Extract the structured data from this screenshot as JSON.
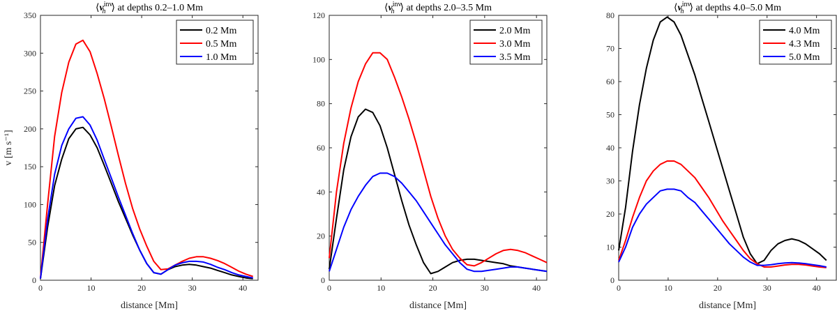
{
  "chart_data": [
    {
      "type": "line",
      "title_prefix": "⟨",
      "title_var": "v",
      "title_sub": "h",
      "title_sup": "inv",
      "title_suffix": "⟩ at depths 0.2–1.0 Mm",
      "xlabel": "distance [Mm]",
      "ylabel": "v [m s⁻¹]",
      "xlim": [
        0,
        43
      ],
      "ylim": [
        0,
        350
      ],
      "xticks": [
        0,
        10,
        20,
        30,
        40
      ],
      "yticks": [
        0,
        50,
        100,
        150,
        200,
        250,
        300,
        350
      ],
      "legend_position": "top-right",
      "x": [
        0,
        1.4,
        2.8,
        4.2,
        5.6,
        7,
        8.4,
        9.8,
        11.2,
        12.6,
        14,
        15.4,
        16.8,
        18.2,
        19.6,
        21,
        22.4,
        23.8,
        25.2,
        26.6,
        28,
        29.4,
        30.8,
        32.2,
        33.6,
        35,
        36.4,
        37.8,
        39.2,
        40.6,
        42
      ],
      "series": [
        {
          "name": "0.2 Mm",
          "color": "#000000",
          "values": [
            2,
            70,
            125,
            160,
            187,
            200,
            202,
            192,
            175,
            152,
            128,
            104,
            82,
            60,
            40,
            22,
            10,
            8,
            14,
            18,
            20,
            21,
            20,
            18,
            16,
            13,
            10,
            7,
            5,
            3,
            2
          ]
        },
        {
          "name": "0.5 Mm",
          "color": "#ff0000",
          "values": [
            3,
            100,
            190,
            248,
            288,
            312,
            317,
            302,
            273,
            240,
            203,
            165,
            128,
            95,
            68,
            45,
            25,
            14,
            15,
            20,
            25,
            29,
            31,
            31,
            29,
            26,
            22,
            17,
            12,
            8,
            5
          ]
        },
        {
          "name": "1.0 Mm",
          "color": "#0000ff",
          "values": [
            2,
            80,
            140,
            178,
            200,
            214,
            216,
            205,
            185,
            160,
            135,
            110,
            86,
            62,
            40,
            22,
            10,
            8,
            14,
            20,
            23,
            25,
            25,
            24,
            21,
            17,
            14,
            10,
            7,
            5,
            3
          ]
        }
      ]
    },
    {
      "type": "line",
      "title_prefix": "⟨",
      "title_var": "v",
      "title_sub": "h",
      "title_sup": "inv",
      "title_suffix": "⟩ at depths 2.0–3.5 Mm",
      "xlabel": "distance [Mm]",
      "ylabel": "",
      "xlim": [
        0,
        42
      ],
      "ylim": [
        0,
        120
      ],
      "xticks": [
        0,
        10,
        20,
        30,
        40
      ],
      "yticks": [
        0,
        20,
        40,
        60,
        80,
        100,
        120
      ],
      "legend_position": "top-right",
      "x": [
        0,
        1.4,
        2.8,
        4.2,
        5.6,
        7,
        8.4,
        9.8,
        11.2,
        12.6,
        14,
        15.4,
        16.8,
        18.2,
        19.6,
        21,
        22.4,
        23.8,
        25.2,
        26.6,
        28,
        29.4,
        30.8,
        32.2,
        33.6,
        35,
        36.4,
        37.8,
        39.2,
        40.6,
        42
      ],
      "series": [
        {
          "name": "2.0 Mm",
          "color": "#000000",
          "values": [
            5,
            28,
            50,
            65,
            74,
            77.5,
            76,
            70,
            60,
            48,
            36,
            25,
            16,
            8,
            3,
            4,
            6,
            8,
            9,
            9.5,
            9.5,
            9,
            8.5,
            8,
            7.5,
            6.5,
            6,
            5.5,
            5,
            4.5,
            4
          ]
        },
        {
          "name": "3.0 Mm",
          "color": "#ff0000",
          "values": [
            10,
            40,
            62,
            78,
            90,
            98,
            103,
            103,
            100,
            92,
            83,
            73,
            62,
            50,
            38,
            28,
            20,
            14,
            10,
            7,
            6.5,
            8,
            10,
            12,
            13.5,
            14,
            13.5,
            12.5,
            11,
            9.5,
            8
          ]
        },
        {
          "name": "3.5 Mm",
          "color": "#0000ff",
          "values": [
            4,
            14,
            24,
            32,
            38,
            43,
            47,
            48.5,
            48.5,
            47,
            44,
            40,
            36,
            31,
            26,
            21,
            16,
            12,
            8,
            5,
            4,
            4,
            4.5,
            5,
            5.5,
            6,
            6,
            5.5,
            5,
            4.5,
            4
          ]
        }
      ]
    },
    {
      "type": "line",
      "title_prefix": "⟨",
      "title_var": "v",
      "title_sub": "h",
      "title_sup": "inv",
      "title_suffix": "⟩ at depths 4.0–5.0 Mm",
      "xlabel": "distance [Mm]",
      "ylabel": "",
      "xlim": [
        0,
        44
      ],
      "ylim": [
        0,
        80
      ],
      "xticks": [
        0,
        10,
        20,
        30,
        40
      ],
      "yticks": [
        0,
        10,
        20,
        30,
        40,
        50,
        60,
        70,
        80
      ],
      "legend_position": "top-right",
      "x": [
        0,
        1.4,
        2.8,
        4.2,
        5.6,
        7,
        8.4,
        9.8,
        11.2,
        12.6,
        14,
        15.4,
        16.8,
        18.2,
        19.6,
        21,
        22.4,
        23.8,
        25.2,
        26.6,
        28,
        29.4,
        30.8,
        32.2,
        33.6,
        35,
        36.4,
        37.8,
        39.2,
        40.6,
        42
      ],
      "series": [
        {
          "name": "4.0 Mm",
          "color": "#000000",
          "values": [
            9,
            22,
            39,
            53,
            64,
            72.5,
            78,
            79.5,
            78,
            74,
            68,
            62,
            55,
            48,
            41,
            34,
            27,
            20,
            13,
            8,
            5,
            6,
            9,
            11,
            12,
            12.5,
            12,
            11,
            9.5,
            8,
            6
          ]
        },
        {
          "name": "4.3 Mm",
          "color": "#ff0000",
          "values": [
            6,
            12,
            19,
            25,
            30,
            33,
            35,
            36,
            36,
            35,
            33,
            31,
            28,
            25,
            21.5,
            18,
            15,
            12,
            9,
            6.5,
            5,
            4,
            4,
            4.3,
            4.6,
            4.8,
            4.8,
            4.6,
            4.3,
            4,
            3.8
          ]
        },
        {
          "name": "5.0 Mm",
          "color": "#0000ff",
          "values": [
            5.5,
            10,
            16,
            20,
            23,
            25,
            27,
            27.5,
            27.5,
            27,
            25,
            23.5,
            21,
            18.5,
            16,
            13.5,
            11,
            9,
            7,
            5.5,
            4.5,
            4.5,
            4.7,
            5,
            5.2,
            5.3,
            5.2,
            5,
            4.7,
            4.4,
            4
          ]
        }
      ]
    }
  ]
}
